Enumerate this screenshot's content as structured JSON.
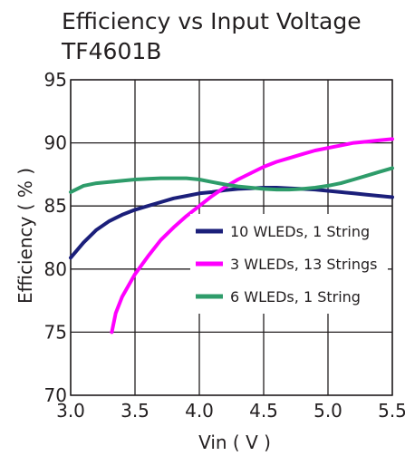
{
  "chart_data": {
    "type": "line",
    "title": "Efficiency vs Input Voltage",
    "subtitle": "TF4601B",
    "xlabel": "Vin ( V )",
    "ylabel": "Efficiency ( % )",
    "xlim": [
      3.0,
      5.5
    ],
    "ylim": [
      70,
      95
    ],
    "xticks": [
      "3.0",
      "3.5",
      "4.0",
      "4.5",
      "5.0",
      "5.5"
    ],
    "yticks": [
      "70",
      "75",
      "80",
      "85",
      "90",
      "95"
    ],
    "grid": true,
    "legend_placement": "center-right",
    "series": [
      {
        "name": "10 WLEDs,  1 String",
        "color": "#1b1f7a",
        "x": [
          3.0,
          3.1,
          3.2,
          3.3,
          3.4,
          3.5,
          3.6,
          3.7,
          3.8,
          3.9,
          4.0,
          4.1,
          4.2,
          4.3,
          4.4,
          4.5,
          4.6,
          4.7,
          4.8,
          4.9,
          5.0,
          5.1,
          5.2,
          5.3,
          5.4,
          5.5
        ],
        "y": [
          80.9,
          82.1,
          83.1,
          83.8,
          84.3,
          84.7,
          85.0,
          85.3,
          85.6,
          85.8,
          86.0,
          86.1,
          86.25,
          86.35,
          86.4,
          86.45,
          86.45,
          86.4,
          86.35,
          86.3,
          86.2,
          86.1,
          86.0,
          85.9,
          85.8,
          85.7
        ]
      },
      {
        "name": "3 WLEDs, 13 Strings",
        "color": "#ff00ff",
        "x": [
          3.32,
          3.35,
          3.4,
          3.5,
          3.6,
          3.7,
          3.8,
          3.9,
          4.0,
          4.1,
          4.2,
          4.3,
          4.4,
          4.5,
          4.6,
          4.7,
          4.8,
          4.9,
          5.0,
          5.1,
          5.2,
          5.3,
          5.4,
          5.5
        ],
        "y": [
          75.0,
          76.5,
          77.8,
          79.6,
          81.0,
          82.3,
          83.3,
          84.2,
          85.0,
          85.8,
          86.5,
          87.1,
          87.6,
          88.1,
          88.5,
          88.8,
          89.1,
          89.4,
          89.6,
          89.8,
          90.0,
          90.1,
          90.2,
          90.3
        ]
      },
      {
        "name": "6 WLEDs, 1 String",
        "color": "#2e9c6a",
        "x": [
          3.0,
          3.1,
          3.2,
          3.3,
          3.4,
          3.5,
          3.6,
          3.7,
          3.8,
          3.9,
          4.0,
          4.1,
          4.2,
          4.3,
          4.4,
          4.5,
          4.6,
          4.7,
          4.8,
          4.9,
          5.0,
          5.1,
          5.2,
          5.3,
          5.4,
          5.5
        ],
        "y": [
          86.1,
          86.6,
          86.8,
          86.9,
          87.0,
          87.1,
          87.15,
          87.2,
          87.2,
          87.2,
          87.1,
          86.9,
          86.7,
          86.55,
          86.45,
          86.35,
          86.3,
          86.3,
          86.35,
          86.45,
          86.6,
          86.8,
          87.1,
          87.4,
          87.7,
          88.0
        ]
      }
    ]
  }
}
